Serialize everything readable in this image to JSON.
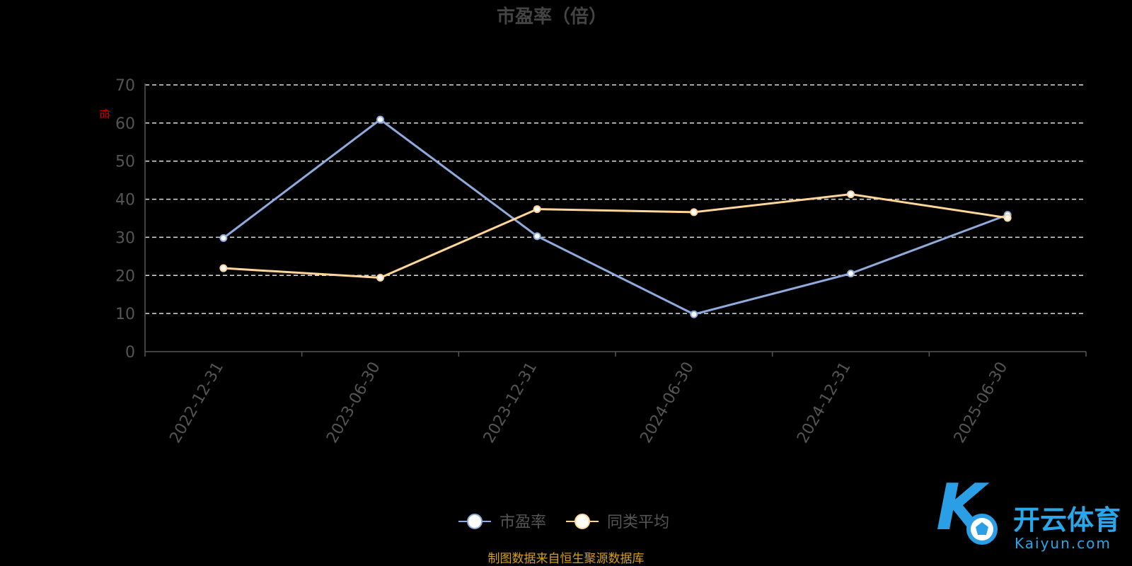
{
  "chart_data": {
    "type": "line",
    "title": "市盈率（倍）",
    "y_unit_label": "倍",
    "categories": [
      "2022-12-31",
      "2023-06-30",
      "2023-12-31",
      "2024-06-30",
      "2024-12-31",
      "2025-06-30"
    ],
    "series": [
      {
        "name": "市盈率",
        "color": "#8faadc",
        "values": [
          29.8,
          60.9,
          30.3,
          9.8,
          20.5,
          35.9
        ]
      },
      {
        "name": "同类平均",
        "color": "#ffd699",
        "values": [
          21.9,
          19.4,
          37.4,
          36.6,
          41.3,
          35.1
        ]
      }
    ],
    "ylim": [
      0,
      70
    ],
    "yticks": [
      0,
      10,
      20,
      30,
      40,
      50,
      60,
      70
    ],
    "grid": true,
    "legend_position": "bottom-center"
  },
  "source_note": "制图数据来自恒生聚源数据库",
  "watermark": {
    "cn": "开云体育",
    "en": "Kaiyun.com"
  }
}
